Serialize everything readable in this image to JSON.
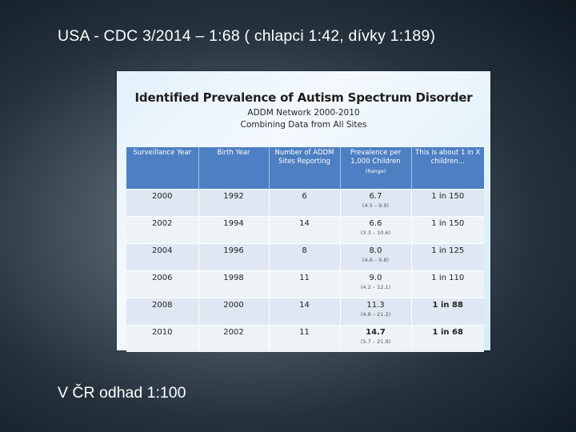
{
  "slide": {
    "title": "USA - CDC 3/2014 – 1:68 ( chlapci 1:42,  dívky 1:189)",
    "footer": "V ČR odhad 1:100"
  },
  "figure": {
    "title": "Identified Prevalence of Autism Spectrum Disorder",
    "subtitle1": "ADDM Network 2000-2010",
    "subtitle2": "Combining Data from All Sites",
    "table": {
      "headers": [
        "Surveillance Year",
        "Birth Year",
        "Number of ADDM Sites Reporting",
        "Prevalence per 1,000 Children",
        "This is about 1 in X children..."
      ],
      "header_range_note": "(Range)",
      "rows": [
        {
          "year": "2000",
          "birth": "1992",
          "sites": "6",
          "prevalence": "6.7",
          "range": "(4.5 – 9.9)",
          "ratio": "1 in 150"
        },
        {
          "year": "2002",
          "birth": "1994",
          "sites": "14",
          "prevalence": "6.6",
          "range": "(3.3 – 10.6)",
          "ratio": "1 in 150"
        },
        {
          "year": "2004",
          "birth": "1996",
          "sites": "8",
          "prevalence": "8.0",
          "range": "(4.6 – 9.8)",
          "ratio": "1 in 125"
        },
        {
          "year": "2006",
          "birth": "1998",
          "sites": "11",
          "prevalence": "9.0",
          "range": "(4.2 – 12.1)",
          "ratio": "1 in 110"
        },
        {
          "year": "2008",
          "birth": "2000",
          "sites": "14",
          "prevalence": "11.3",
          "range": "(4.8 – 21.2)",
          "ratio": "1 in 88"
        },
        {
          "year": "2010",
          "birth": "2002",
          "sites": "11",
          "prevalence": "14.7",
          "range": "(5.7 – 21.9)",
          "ratio": "1 in 68"
        }
      ]
    }
  }
}
